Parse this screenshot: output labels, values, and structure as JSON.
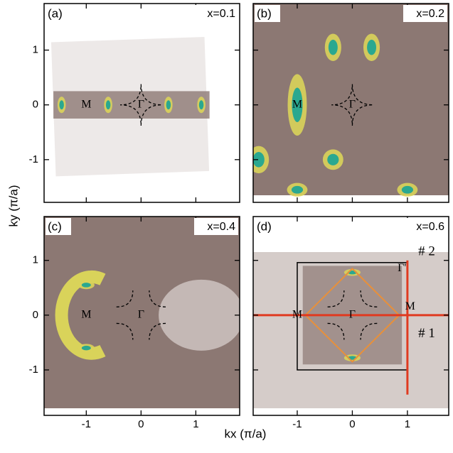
{
  "x_label": "kx (π/a)",
  "y_label": "ky (π/a)",
  "chart_data": [
    {
      "type": "heatmap",
      "panel": "(a)",
      "annotation": "x=0.1",
      "labels": [
        "M",
        "Γ"
      ],
      "xlim": [
        -1.77,
        1.8
      ],
      "ylim": [
        -1.78,
        1.85
      ],
      "xticks": [
        -1,
        0,
        1
      ],
      "yticks": [
        -1,
        0,
        1
      ]
    },
    {
      "type": "heatmap",
      "panel": "(b)",
      "annotation": "x=0.2",
      "labels": [
        "M",
        "Γ"
      ],
      "xlim": [
        -1.8,
        1.75
      ],
      "ylim": [
        -1.78,
        1.85
      ],
      "xticks": [
        -1,
        0,
        1
      ],
      "yticks": [
        -1,
        0,
        1
      ]
    },
    {
      "type": "heatmap",
      "panel": "(c)",
      "annotation": "x=0.4",
      "labels": [
        "M",
        "Γ"
      ],
      "xlim": [
        -1.77,
        1.8
      ],
      "ylim": [
        -1.83,
        1.8
      ],
      "xticks": [
        -1,
        0,
        1
      ],
      "yticks": [
        -1,
        0,
        1
      ]
    },
    {
      "type": "heatmap",
      "panel": "(d)",
      "annotation": "x=0.6",
      "labels": [
        "M",
        "Γ",
        "M",
        "Γ'",
        "# 2",
        "# 1"
      ],
      "xlim": [
        -1.8,
        1.75
      ],
      "ylim": [
        -1.83,
        1.8
      ],
      "xticks": [
        -1,
        0,
        1
      ],
      "yticks": [
        -1,
        0,
        1
      ]
    }
  ]
}
